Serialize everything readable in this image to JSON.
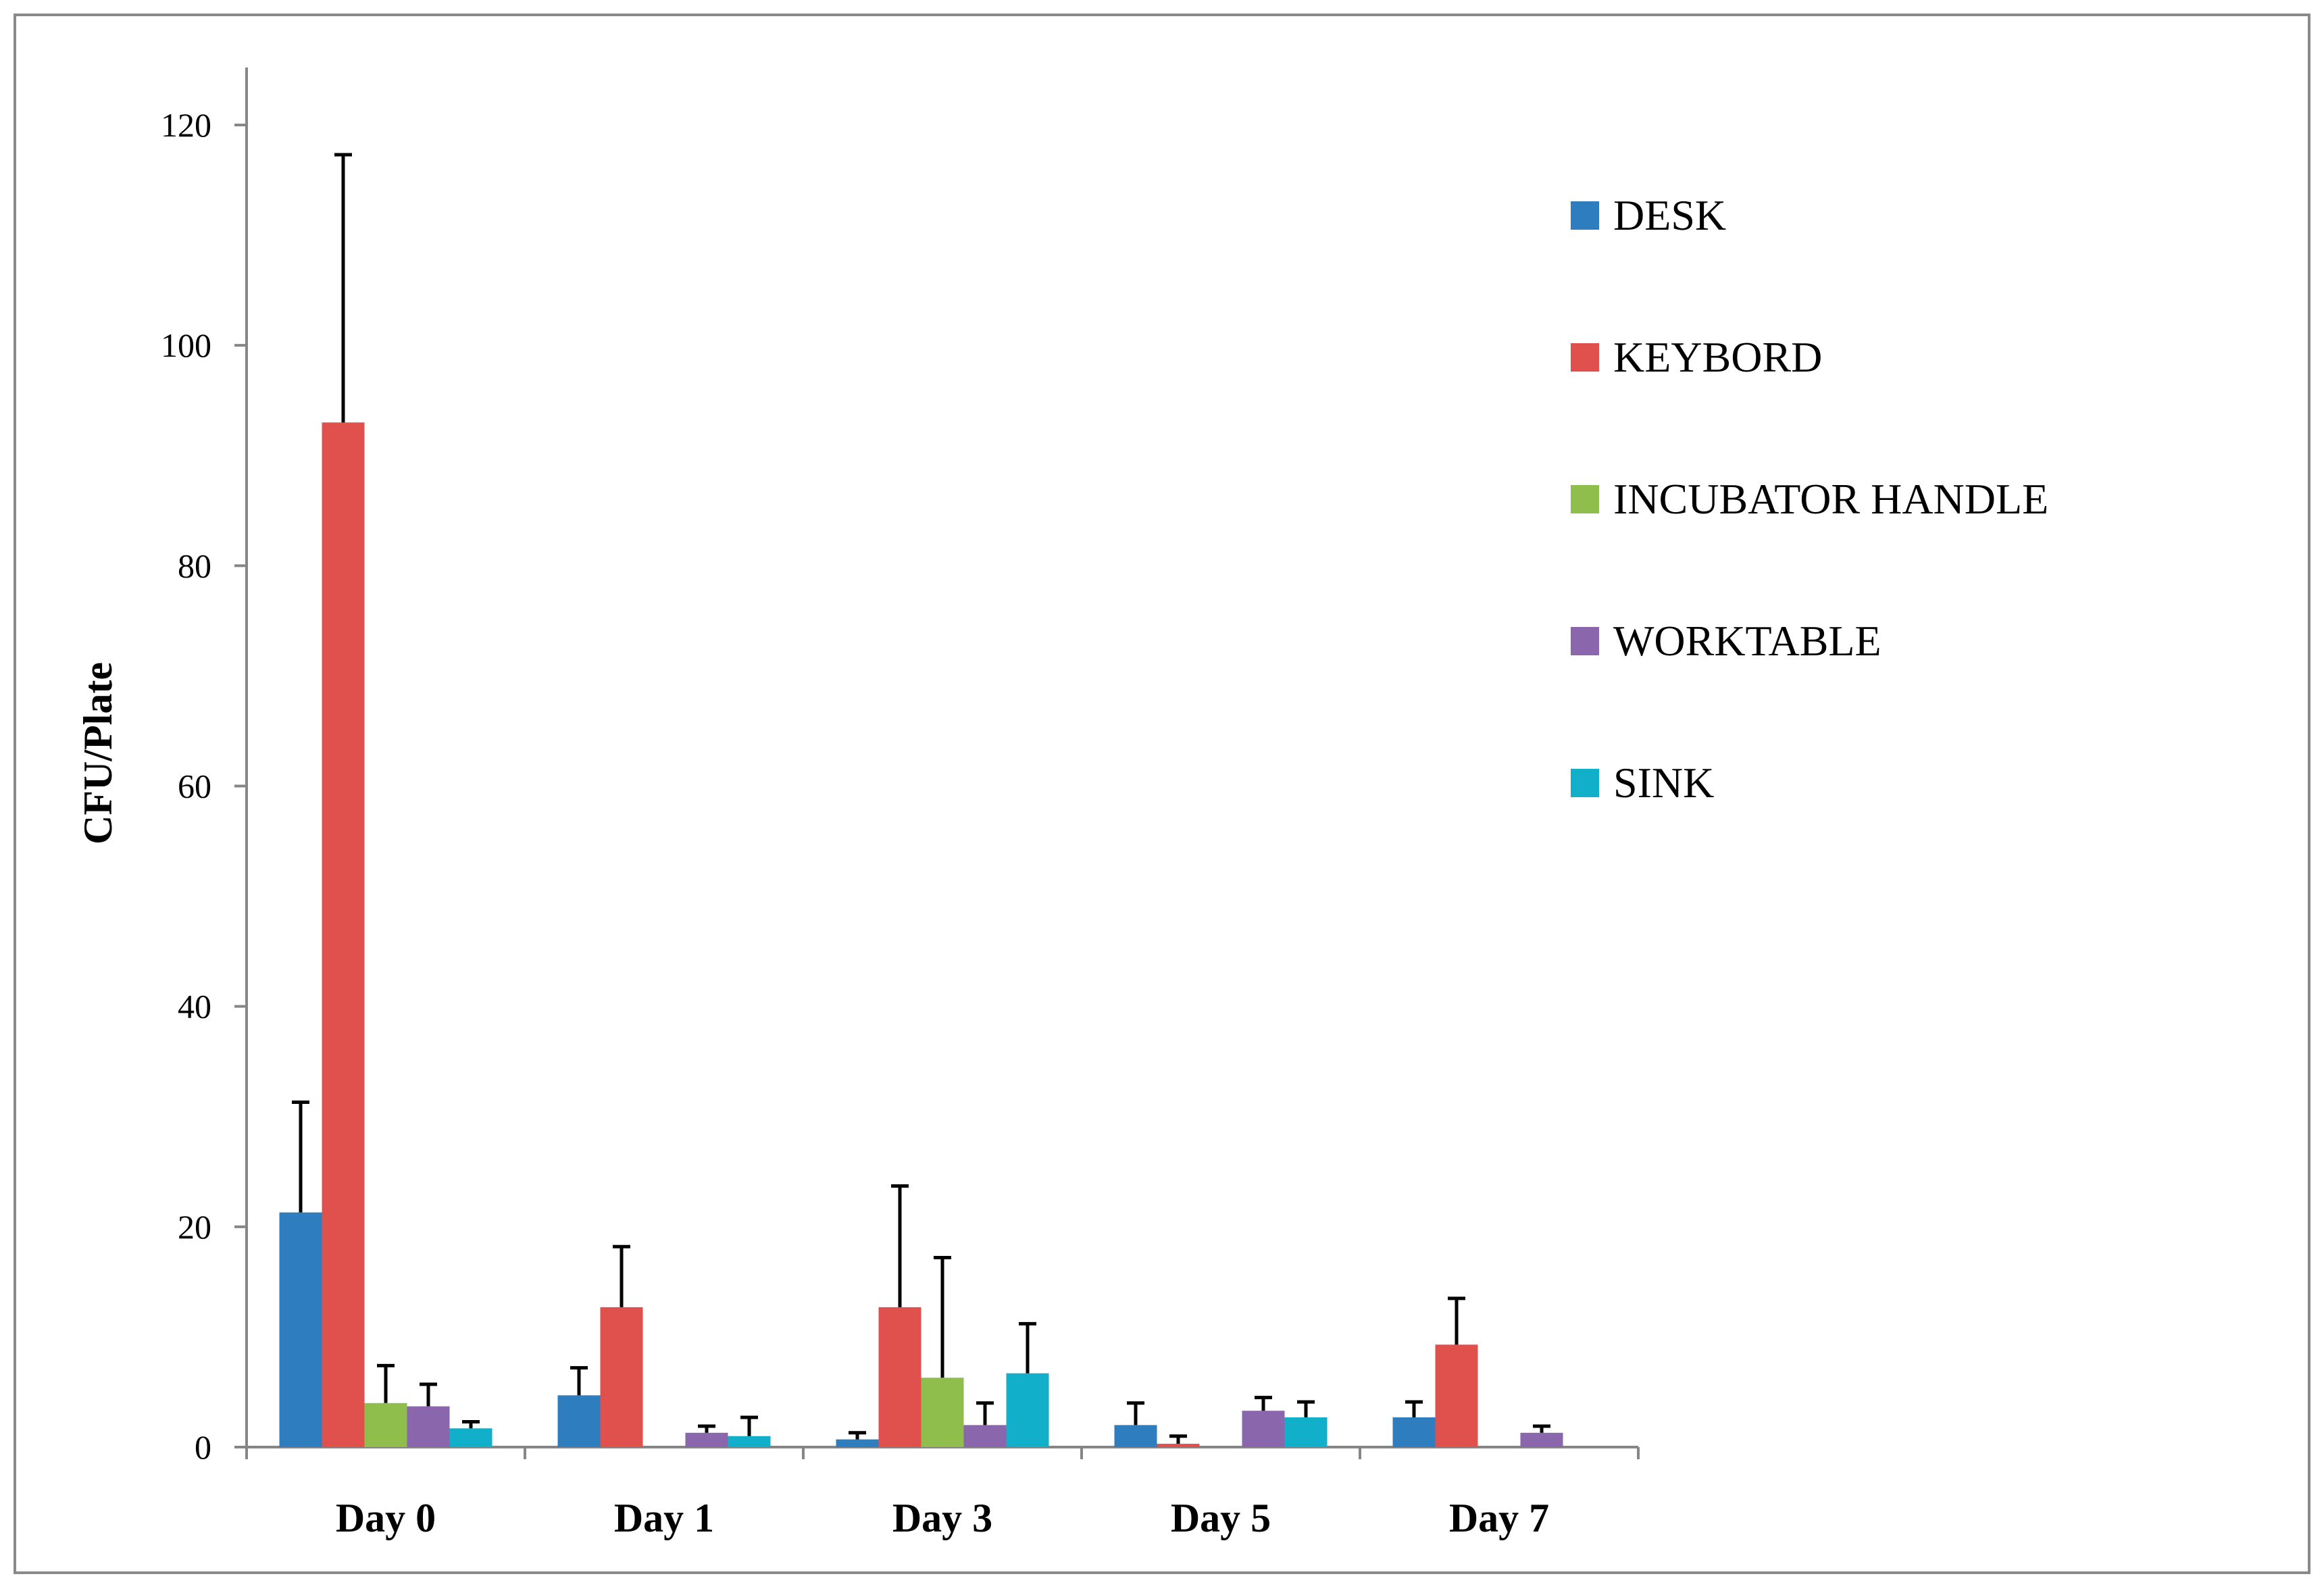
{
  "chart_data": {
    "type": "bar",
    "title": "",
    "xlabel": "",
    "ylabel": "CFU/Plate",
    "ylim": [
      0,
      120
    ],
    "yticks": [
      0,
      20,
      40,
      60,
      80,
      100,
      120
    ],
    "grid": false,
    "legend_position": "right",
    "categories": [
      "Day 0",
      "Day 1",
      "Day 3",
      "Day 5",
      "Day 7"
    ],
    "series": [
      {
        "name": "DESK",
        "color": "#2e7ebf",
        "values": [
          21.3,
          4.7,
          0.7,
          2.0,
          2.7
        ],
        "errors": [
          10.0,
          2.5,
          0.6,
          2.0,
          1.4
        ]
      },
      {
        "name": "KEYBORD",
        "color": "#e0504c",
        "values": [
          93.0,
          12.7,
          12.7,
          0.3,
          9.3
        ],
        "errors": [
          24.3,
          5.5,
          11.0,
          0.7,
          4.2
        ]
      },
      {
        "name": "INCUBATOR HANDLE",
        "color": "#8fbe4c",
        "values": [
          4.0,
          0,
          6.3,
          0,
          0
        ],
        "errors": [
          3.4,
          0,
          10.9,
          0,
          0
        ]
      },
      {
        "name": "WORKTABLE",
        "color": "#8a66ad",
        "values": [
          3.7,
          1.3,
          2.0,
          3.3,
          1.3
        ],
        "errors": [
          2.0,
          0.6,
          2.0,
          1.2,
          0.6
        ]
      },
      {
        "name": "SINK",
        "color": "#12afca",
        "values": [
          1.7,
          1.0,
          6.7,
          2.7,
          0
        ],
        "errors": [
          0.6,
          1.7,
          4.5,
          1.4,
          0
        ]
      }
    ]
  }
}
